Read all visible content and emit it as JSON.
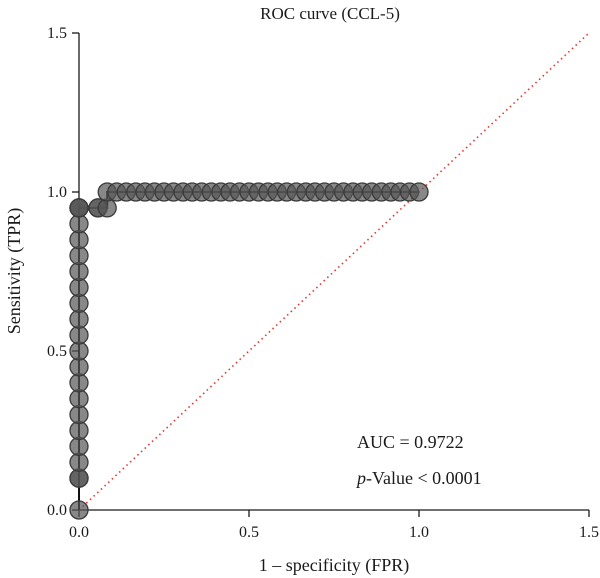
{
  "chart_data": {
    "type": "line",
    "title": "ROC curve (CCL-5)",
    "xlabel": "1 – specificity (FPR)",
    "ylabel": "Sensitivity (TPR)",
    "xlim": [
      0,
      1.5
    ],
    "ylim": [
      0,
      1.5
    ],
    "x_ticks": [
      "0.0",
      "0.5",
      "1.0",
      "1.5"
    ],
    "y_ticks": [
      "0.0",
      "0.5",
      "1.0",
      "1.5"
    ],
    "grid": false,
    "annotation": {
      "auc_text": "AUC = 0.9722",
      "p_italic": "p",
      "p_rest": "-Value < 0.0001"
    },
    "reference_line": {
      "x": [
        0,
        1.5
      ],
      "y": [
        0,
        1.5
      ],
      "color": "#e8322a",
      "style": "dotted"
    },
    "series": [
      {
        "color": "#555555",
        "x": [
          0,
          0.0,
          0.0,
          0.0,
          0.0,
          0.0,
          0.0,
          0.0,
          0.0,
          0.0,
          0.0,
          0.0,
          0.0,
          0.0,
          0.0,
          0.0,
          0.0,
          0.0,
          0.0,
          0.0,
          0.0,
          0.0,
          0.056,
          0.056,
          0.083,
          0.083,
          0.111,
          0.139,
          0.167,
          0.194,
          0.222,
          0.25,
          0.278,
          0.306,
          0.333,
          0.361,
          0.389,
          0.417,
          0.444,
          0.472,
          0.5,
          0.528,
          0.556,
          0.583,
          0.611,
          0.639,
          0.667,
          0.694,
          0.722,
          0.75,
          0.778,
          0.806,
          0.833,
          0.861,
          0.889,
          0.917,
          0.944,
          0.972,
          1.0
        ],
        "y": [
          0,
          0.1,
          0.1,
          0.15,
          0.2,
          0.25,
          0.3,
          0.35,
          0.4,
          0.45,
          0.5,
          0.55,
          0.6,
          0.65,
          0.7,
          0.75,
          0.8,
          0.85,
          0.9,
          0.95,
          0.95,
          0.95,
          0.95,
          0.95,
          0.95,
          1.0,
          1.0,
          1.0,
          1.0,
          1.0,
          1.0,
          1.0,
          1.0,
          1.0,
          1.0,
          1.0,
          1.0,
          1.0,
          1.0,
          1.0,
          1.0,
          1.0,
          1.0,
          1.0,
          1.0,
          1.0,
          1.0,
          1.0,
          1.0,
          1.0,
          1.0,
          1.0,
          1.0,
          1.0,
          1.0,
          1.0,
          1.0,
          1.0,
          1.0
        ]
      }
    ]
  }
}
